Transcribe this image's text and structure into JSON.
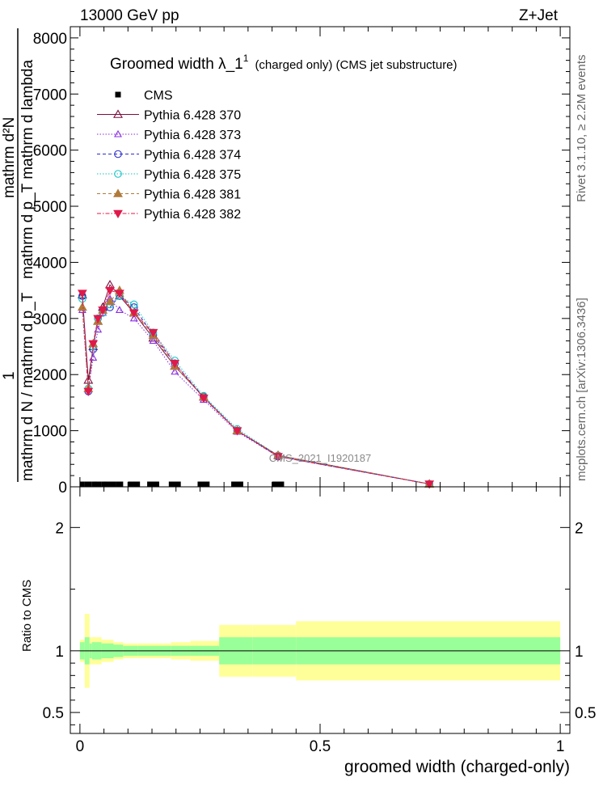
{
  "header": {
    "left": "13000 GeV pp",
    "right": "Z+Jet"
  },
  "side": {
    "rivet": "Rivet 3.1.10, ≥ 2.2M events",
    "mcplots": "mcplots.cern.ch [arXiv:1306.3436]"
  },
  "watermark": "CMS_2021_I1920187",
  "chart_data": {
    "type": "line",
    "title": "Groomed width  λ_1",
    "title_sup": "1",
    "title_suffix": "(charged only) (CMS jet substructure)",
    "xlabel": "groomed width (charged-only)",
    "ylabel": {
      "numerator": "mathrm d²N",
      "denominator": "mathrm d p_T mathrm d lambda",
      "prefix_top": "1",
      "prefix_bottom": "mathrm d N / mathrm d p_T"
    },
    "ratio_ylabel": "Ratio to CMS",
    "xlim": [
      -0.02,
      1.02
    ],
    "ylim": [
      0,
      8200
    ],
    "ratio_ylim": [
      0.33,
      2.33
    ],
    "x_ticks": [
      "0",
      "0.5",
      "1"
    ],
    "y_ticks": [
      "0",
      "1000",
      "2000",
      "3000",
      "4000",
      "5000",
      "6000",
      "7000",
      "8000"
    ],
    "ratio_ticks": [
      "0.5",
      "1",
      "2"
    ],
    "x": [
      0.005,
      0.0175,
      0.0275,
      0.0375,
      0.0475,
      0.0625,
      0.0825,
      0.1125,
      0.1525,
      0.1975,
      0.2575,
      0.3275,
      0.4125,
      0.7275
    ],
    "cms": {
      "name": "CMS",
      "bins": [
        [
          0.0,
          0.01
        ],
        [
          0.01,
          0.025
        ],
        [
          0.025,
          0.03
        ],
        [
          0.03,
          0.045
        ],
        [
          0.045,
          0.05
        ],
        [
          0.05,
          0.075
        ],
        [
          0.075,
          0.09
        ],
        [
          0.1,
          0.125
        ],
        [
          0.14,
          0.165
        ],
        [
          0.185,
          0.21
        ],
        [
          0.245,
          0.27
        ],
        [
          0.315,
          0.34
        ],
        [
          0.4,
          0.425
        ]
      ],
      "values": [
        50,
        50,
        50,
        50,
        50,
        50,
        50,
        50,
        50,
        50,
        50,
        50,
        50
      ]
    },
    "series": [
      {
        "name": "Pythia 6.428 370",
        "color": "#7a0c3c",
        "marker": "triangle-open",
        "dash": "solid",
        "values": [
          3420,
          1900,
          2500,
          2950,
          3200,
          3600,
          3400,
          3100,
          2650,
          2150,
          1600,
          1000,
          560,
          50
        ]
      },
      {
        "name": "Pythia 6.428 373",
        "color": "#8a2be2",
        "marker": "triangle-open-small",
        "dash": "dotted",
        "values": [
          3150,
          1750,
          2300,
          2800,
          3100,
          3350,
          3150,
          3000,
          2600,
          2050,
          1550,
          980,
          540,
          50
        ]
      },
      {
        "name": "Pythia 6.428 374",
        "color": "#2b2bc9",
        "marker": "circle-open",
        "dash": "dashed",
        "values": [
          3400,
          1700,
          2450,
          3000,
          3150,
          3200,
          3400,
          3200,
          2700,
          2200,
          1600,
          1000,
          540,
          50
        ]
      },
      {
        "name": "Pythia 6.428 375",
        "color": "#14c2c2",
        "marker": "circle-open",
        "dash": "dotted",
        "values": [
          3350,
          1750,
          2500,
          3000,
          3100,
          3250,
          3400,
          3250,
          2750,
          2250,
          1620,
          1030,
          560,
          50
        ]
      },
      {
        "name": "Pythia 6.428 381",
        "color": "#b07a3a",
        "marker": "triangle-filled",
        "dash": "dashed",
        "values": [
          3200,
          1750,
          2550,
          2950,
          3150,
          3300,
          3500,
          3100,
          2700,
          2150,
          1600,
          1000,
          560,
          50
        ]
      },
      {
        "name": "Pythia 6.428 382",
        "color": "#e0194a",
        "marker": "triangle-down-filled",
        "dash": "dashdot",
        "values": [
          3450,
          1700,
          2550,
          3000,
          3150,
          3500,
          3450,
          3100,
          2750,
          2200,
          1580,
          1000,
          540,
          50
        ]
      }
    ],
    "ratio_band": {
      "edges": [
        0.0,
        0.01,
        0.02,
        0.025,
        0.045,
        0.07,
        0.09,
        0.12,
        0.15,
        0.19,
        0.23,
        0.29,
        0.36,
        0.45,
        1.0
      ],
      "green": [
        0.07,
        0.11,
        0.06,
        0.07,
        0.06,
        0.05,
        0.04,
        0.04,
        0.04,
        0.04,
        0.04,
        0.11,
        0.11,
        0.11
      ],
      "yellow": [
        0.09,
        0.3,
        0.11,
        0.11,
        0.09,
        0.07,
        0.06,
        0.06,
        0.06,
        0.07,
        0.08,
        0.21,
        0.21,
        0.24
      ]
    }
  }
}
